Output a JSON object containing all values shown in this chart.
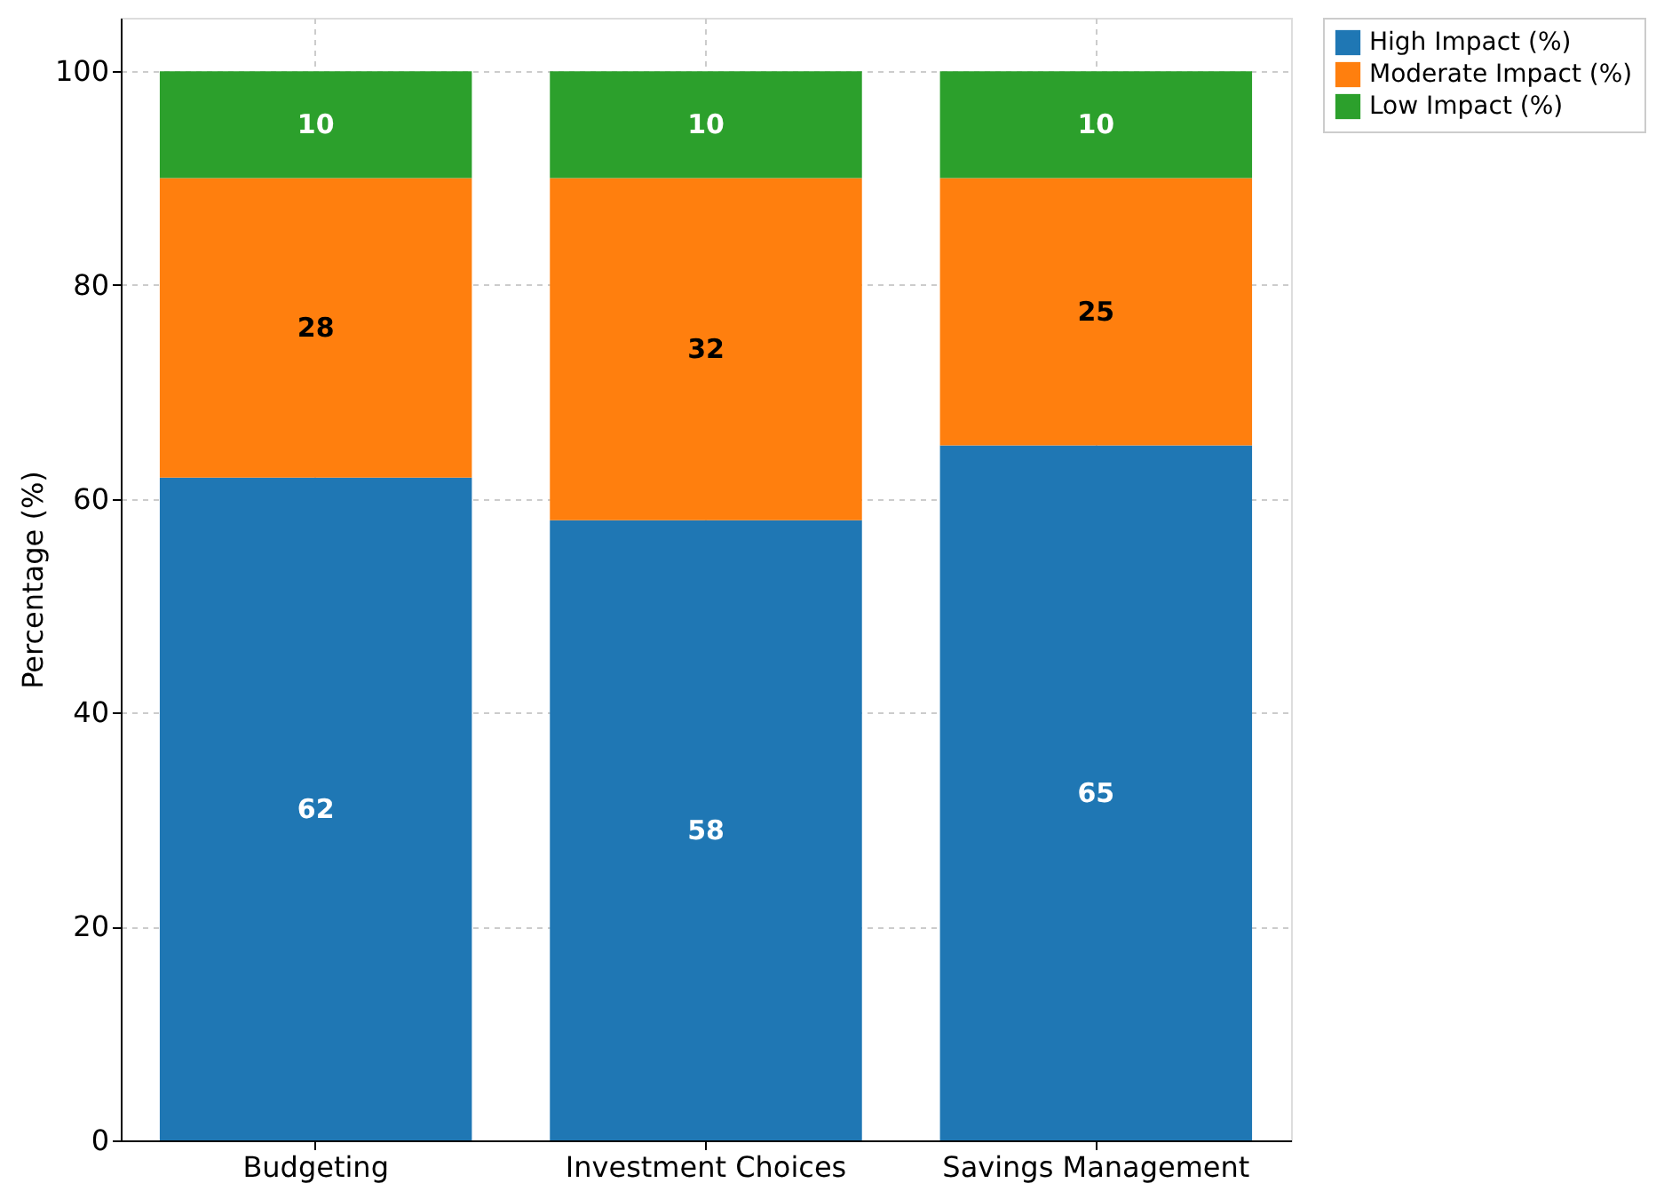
{
  "chart_data": {
    "type": "bar",
    "stacked": true,
    "ylabel": "Percentage (%)",
    "categories": [
      "Budgeting",
      "Investment Choices",
      "Savings Management"
    ],
    "series": [
      {
        "name": "High Impact (%)",
        "color": "#1f77b4",
        "values": [
          62,
          58,
          65
        ]
      },
      {
        "name": "Moderate Impact (%)",
        "color": "#ff7f0e",
        "values": [
          28,
          32,
          25
        ]
      },
      {
        "name": "Low Impact (%)",
        "color": "#2ca02c",
        "values": [
          10,
          10,
          10
        ]
      }
    ],
    "ylim": [
      0,
      105
    ],
    "yticks": [
      0,
      20,
      40,
      60,
      80,
      100
    ],
    "grid": true,
    "legend": "top right",
    "data_labels": true
  }
}
